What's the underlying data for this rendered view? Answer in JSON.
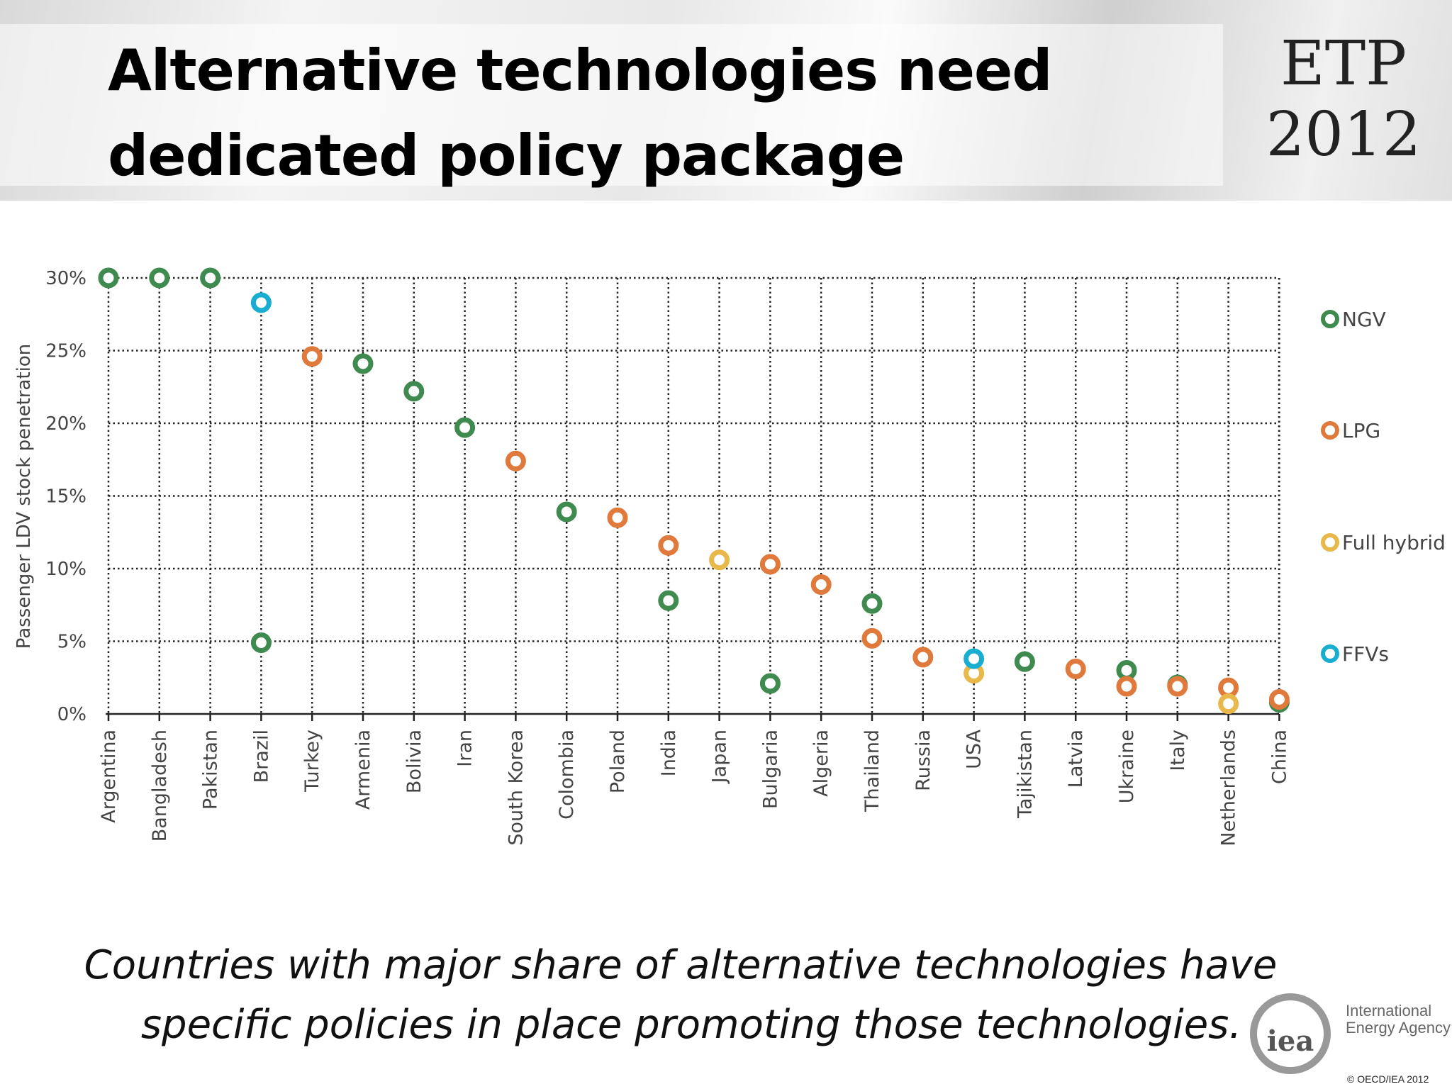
{
  "header": {
    "title_line1": "Alternative technologies need",
    "title_line2": "dedicated policy package",
    "badge_line1": "ETP",
    "badge_line2": "2012"
  },
  "caption": {
    "line1": "Countries with major share of alternative technologies have",
    "line2": "specific policies in place promoting those technologies."
  },
  "footer": {
    "logo_text": "iea",
    "org_line1": "International",
    "org_line2": "Energy Agency",
    "copyright": "© OECD/IEA 2012"
  },
  "chart_data": {
    "type": "scatter",
    "title": "",
    "xlabel": "",
    "ylabel": "Passenger LDV stock penetration",
    "ylim": [
      0,
      30
    ],
    "yticks": [
      "0%",
      "5%",
      "10%",
      "15%",
      "20%",
      "25%",
      "30%"
    ],
    "grid": true,
    "legend_position": "right",
    "categories": [
      "Argentina",
      "Bangladesh",
      "Pakistan",
      "Brazil",
      "Turkey",
      "Armenia",
      "Bolivia",
      "Iran",
      "South Korea",
      "Colombia",
      "Poland",
      "India",
      "Japan",
      "Bulgaria",
      "Algeria",
      "Thailand",
      "Russia",
      "USA",
      "Tajikistan",
      "Latvia",
      "Ukraine",
      "Italy",
      "Netherlands",
      "China"
    ],
    "series": [
      {
        "name": "NGV",
        "color": "#3f8a4f",
        "points": [
          [
            "Argentina",
            30
          ],
          [
            "Bangladesh",
            30
          ],
          [
            "Pakistan",
            30
          ],
          [
            "Brazil",
            4.9
          ],
          [
            "Armenia",
            24.1
          ],
          [
            "Bolivia",
            22.2
          ],
          [
            "Iran",
            19.7
          ],
          [
            "Colombia",
            13.9
          ],
          [
            "India",
            7.8
          ],
          [
            "Bulgaria",
            2.1
          ],
          [
            "Thailand",
            7.6
          ],
          [
            "Tajikistan",
            3.6
          ],
          [
            "Ukraine",
            3.0
          ],
          [
            "Italy",
            2.0
          ],
          [
            "China",
            0.8
          ]
        ]
      },
      {
        "name": "LPG",
        "color": "#e07a3c",
        "points": [
          [
            "Turkey",
            24.6
          ],
          [
            "South Korea",
            17.4
          ],
          [
            "Poland",
            13.5
          ],
          [
            "India",
            11.6
          ],
          [
            "Bulgaria",
            10.3
          ],
          [
            "Algeria",
            8.9
          ],
          [
            "Thailand",
            5.2
          ],
          [
            "Russia",
            3.9
          ],
          [
            "Latvia",
            3.1
          ],
          [
            "Ukraine",
            1.9
          ],
          [
            "Italy",
            1.9
          ],
          [
            "Netherlands",
            1.8
          ],
          [
            "China",
            1.0
          ]
        ]
      },
      {
        "name": "Full hybrid",
        "color": "#e8b84a",
        "points": [
          [
            "Japan",
            10.6
          ],
          [
            "USA",
            2.8
          ],
          [
            "Netherlands",
            0.7
          ]
        ]
      },
      {
        "name": "FFVs",
        "color": "#19aed1",
        "points": [
          [
            "Brazil",
            28.3
          ],
          [
            "USA",
            3.8
          ]
        ]
      }
    ]
  }
}
